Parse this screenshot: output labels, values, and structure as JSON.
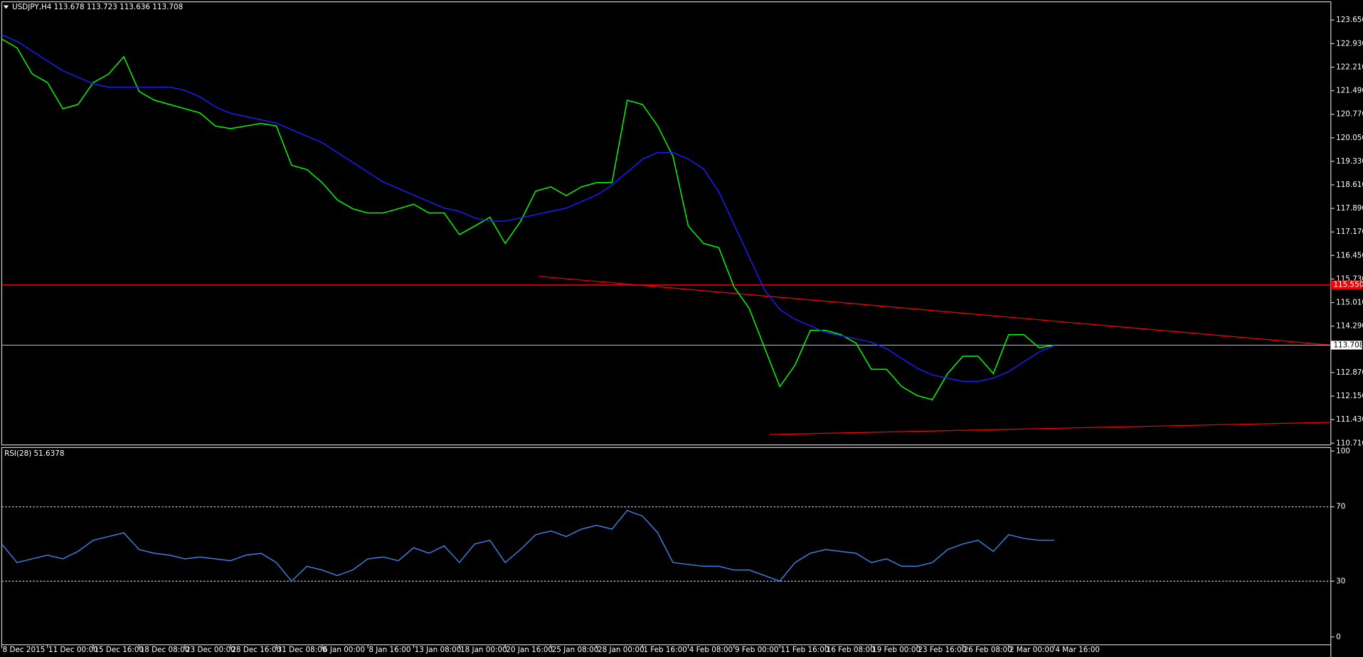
{
  "chart_data": [
    {
      "type": "line",
      "title": "USDJPY,H4 113.678 113.723 113.636 113.708",
      "categories": [
        "8 Dec 2015",
        null,
        null,
        "11 Dec 00:00",
        null,
        null,
        "15 Dec 16:00",
        null,
        null,
        "18 Dec 08:00",
        null,
        null,
        "23 Dec 00:00",
        null,
        null,
        "28 Dec 16:00",
        null,
        null,
        "31 Dec 08:00",
        null,
        null,
        "6 Jan 00:00",
        null,
        null,
        "8 Jan 16:00",
        null,
        null,
        "13 Jan 08:00",
        null,
        null,
        "18 Jan 00:00",
        null,
        null,
        "20 Jan 16:00",
        null,
        null,
        "25 Jan 08:00",
        null,
        null,
        "28 Jan 00:00",
        null,
        null,
        "1 Feb 16:00",
        null,
        null,
        "4 Feb 08:00",
        null,
        null,
        "9 Feb 00:00",
        null,
        null,
        "11 Feb 16:00",
        null,
        null,
        "16 Feb 08:00",
        null,
        null,
        "19 Feb 00:00",
        null,
        null,
        "23 Feb 16:00",
        null,
        null,
        "26 Feb 08:00",
        null,
        null,
        "2 Mar 00:00",
        null,
        null,
        "4 Mar 16:00"
      ],
      "series": [
        {
          "color": "#00ff00",
          "values": [
            123.07,
            122.8,
            122.0,
            121.74,
            120.94,
            121.07,
            121.74,
            122.0,
            122.53,
            121.47,
            121.2,
            121.07,
            120.94,
            120.81,
            120.41,
            120.33,
            120.41,
            120.49,
            120.41,
            119.21,
            119.08,
            118.68,
            118.15,
            117.88,
            117.75,
            117.75,
            117.88,
            118.02,
            117.75,
            117.75,
            117.09,
            117.35,
            117.62,
            116.82,
            117.49,
            118.42,
            118.55,
            118.28,
            118.55,
            118.68,
            118.68,
            121.2,
            121.07,
            120.41,
            119.48,
            117.35,
            116.82,
            116.69,
            115.49,
            114.83,
            113.63,
            112.44,
            113.1,
            114.16,
            114.16,
            114.03,
            113.77,
            112.97,
            112.97,
            112.44,
            112.17,
            112.04,
            112.84,
            113.37,
            113.37,
            112.84,
            114.03,
            114.03,
            113.63,
            113.708
          ]
        },
        {
          "color": "#1c1cff",
          "values": [
            123.2,
            123.0,
            122.7,
            122.4,
            122.1,
            121.9,
            121.7,
            121.6,
            121.6,
            121.6,
            121.6,
            121.6,
            121.5,
            121.3,
            121.0,
            120.8,
            120.7,
            120.6,
            120.5,
            120.3,
            120.1,
            119.9,
            119.6,
            119.3,
            119.0,
            118.7,
            118.5,
            118.3,
            118.1,
            117.9,
            117.8,
            117.6,
            117.5,
            117.5,
            117.6,
            117.7,
            117.8,
            117.9,
            118.1,
            118.3,
            118.6,
            119.0,
            119.4,
            119.6,
            119.6,
            119.4,
            119.1,
            118.4,
            117.4,
            116.4,
            115.4,
            114.8,
            114.5,
            114.3,
            114.1,
            114.0,
            113.9,
            113.8,
            113.6,
            113.3,
            113.0,
            112.8,
            112.7,
            112.6,
            112.6,
            112.7,
            112.9,
            113.2,
            113.5,
            113.7
          ]
        }
      ],
      "ylim": [
        110.71,
        123.65
      ],
      "yticks": [
        {
          "value": 123.65,
          "label": "123.650"
        },
        {
          "value": 122.93,
          "label": "122.930"
        },
        {
          "value": 122.21,
          "label": "122.210"
        },
        {
          "value": 121.49,
          "label": "121.490"
        },
        {
          "value": 120.77,
          "label": "120.770"
        },
        {
          "value": 120.05,
          "label": "120.050"
        },
        {
          "value": 119.33,
          "label": "119.330"
        },
        {
          "value": 118.61,
          "label": "118.610"
        },
        {
          "value": 117.89,
          "label": "117.890"
        },
        {
          "value": 117.17,
          "label": "117.170"
        },
        {
          "value": 116.45,
          "label": "116.450"
        },
        {
          "value": 115.73,
          "label": "115.730"
        },
        {
          "value": 115.01,
          "label": "115.010"
        },
        {
          "value": 114.29,
          "label": "114.290"
        },
        {
          "value": 112.87,
          "label": "112.870"
        },
        {
          "value": 112.15,
          "label": "112.150"
        },
        {
          "value": 111.43,
          "label": "111.430"
        },
        {
          "value": 110.71,
          "label": "110.710"
        }
      ],
      "hlines": [
        {
          "value": 115.55,
          "label": "115.550",
          "color": "#ff0000"
        },
        {
          "value": 113.708,
          "label": "113.708",
          "color": "#8fb0d0"
        }
      ]
    },
    {
      "type": "line",
      "title": "RSI(28) 51.6378",
      "color": "#3d7fe0",
      "values": [
        50,
        40,
        42,
        44,
        42,
        46,
        52,
        54,
        56,
        47,
        45,
        44,
        42,
        43,
        42,
        41,
        44,
        45,
        40,
        30,
        38,
        36,
        33,
        36,
        42,
        43,
        41,
        48,
        45,
        49,
        40,
        50,
        52,
        40,
        47,
        55,
        57,
        54,
        58,
        60,
        58,
        68,
        65,
        56,
        40,
        39,
        38,
        38,
        36,
        36,
        33,
        30,
        40,
        45,
        47,
        46,
        45,
        40,
        42,
        38,
        38,
        40,
        47,
        50,
        52,
        46,
        55,
        53,
        52,
        52
      ],
      "ylim": [
        0,
        100
      ],
      "yticks": [
        0,
        30,
        70,
        100
      ],
      "levels": [
        30,
        70
      ]
    }
  ]
}
